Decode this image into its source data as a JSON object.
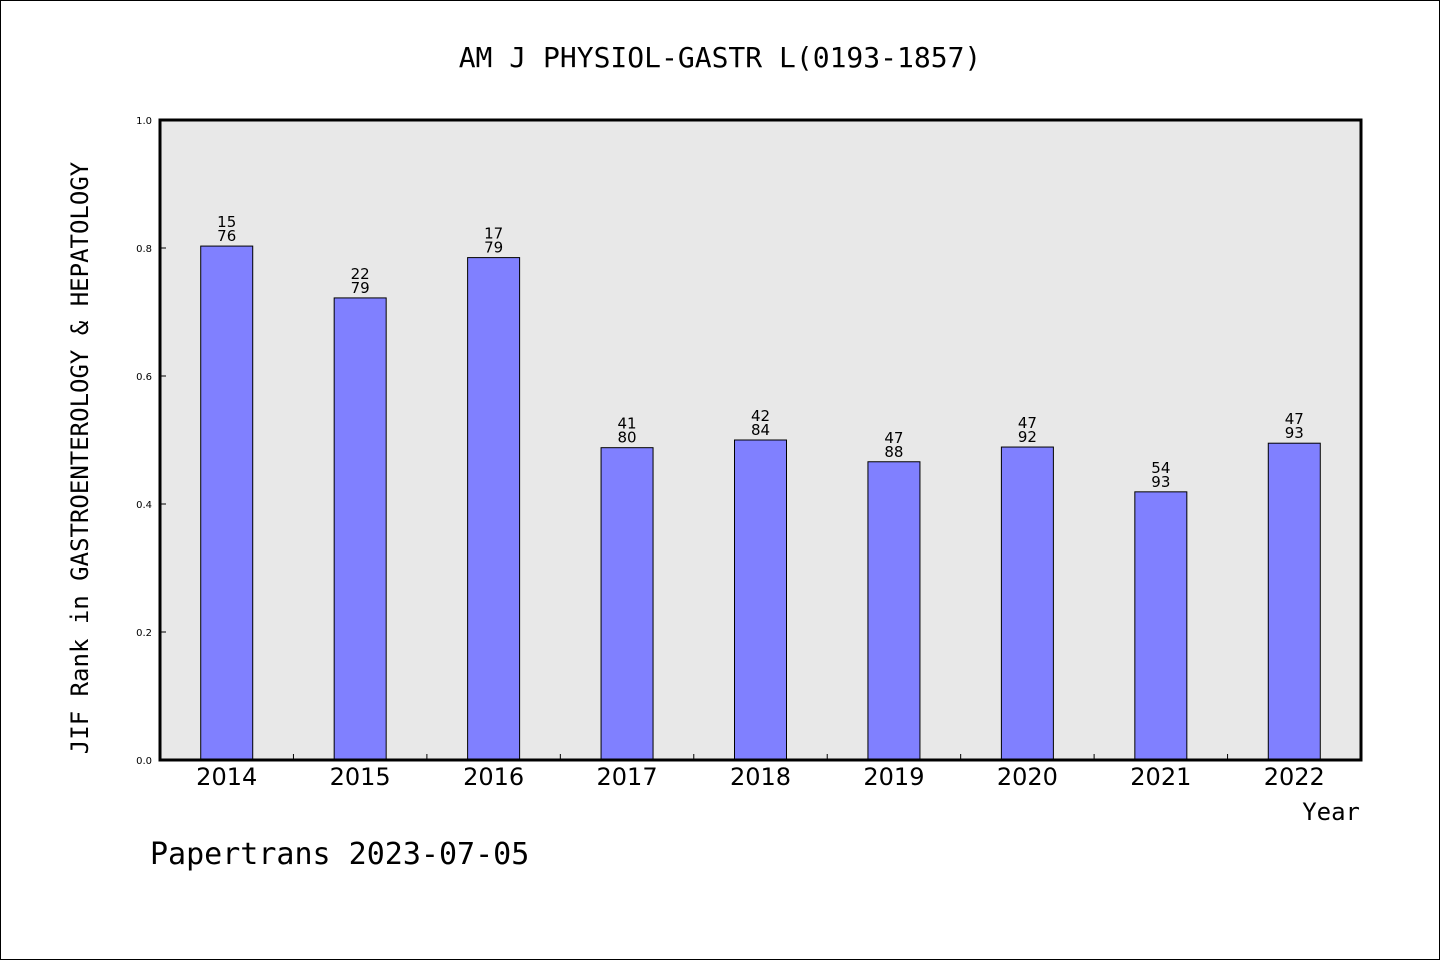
{
  "chart_data": {
    "type": "bar",
    "title": "AM J PHYSIOL-GASTR L(0193-1857)",
    "xlabel": "Year",
    "ylabel": "JIF Rank in GASTROENTEROLOGY & HEPATOLOGY",
    "ylim": [
      0.0,
      1.0
    ],
    "yticks": [
      "0.0",
      "0.2",
      "0.4",
      "0.6",
      "0.8",
      "1.0"
    ],
    "grid": false,
    "legend": "none",
    "categories": [
      "2014",
      "2015",
      "2016",
      "2017",
      "2018",
      "2019",
      "2020",
      "2021",
      "2022"
    ],
    "values": [
      0.803,
      0.722,
      0.785,
      0.488,
      0.5,
      0.466,
      0.489,
      0.419,
      0.495
    ],
    "bar_labels": [
      [
        "15",
        "76"
      ],
      [
        "22",
        "79"
      ],
      [
        "17",
        "79"
      ],
      [
        "41",
        "80"
      ],
      [
        "42",
        "84"
      ],
      [
        "47",
        "88"
      ],
      [
        "47",
        "92"
      ],
      [
        "54",
        "93"
      ],
      [
        "47",
        "93"
      ]
    ],
    "colors": {
      "bar_fill": "#8080ff",
      "bar_stroke": "#000000",
      "plot_background": "#e8e8e8",
      "axis": "#000000"
    }
  },
  "footer": {
    "text": "Papertrans 2023-07-05"
  }
}
